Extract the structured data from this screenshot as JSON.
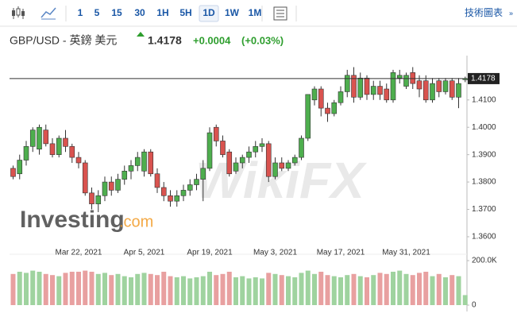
{
  "toolbar": {
    "intervals": [
      "1",
      "5",
      "15",
      "30",
      "1H",
      "5H",
      "1D",
      "1W",
      "1M"
    ],
    "selected": 6,
    "link": "技術圖表"
  },
  "header": {
    "pair": "GBP/USD - 英鎊 美元",
    "price": "1.4178",
    "change": "+0.0004",
    "change_pct": "(+0.03%)"
  },
  "watermarks": {
    "brand": "Investing",
    "brand_suffix": ".com",
    "wikifx": "WikiFX"
  },
  "chart_data": {
    "type": "candlestick",
    "categories": [
      null,
      null,
      null,
      null,
      null,
      null,
      null,
      null,
      null,
      null,
      "Mar 22, 2021",
      null,
      null,
      null,
      null,
      null,
      null,
      null,
      null,
      null,
      "Apr 5, 2021",
      null,
      null,
      null,
      null,
      null,
      null,
      null,
      null,
      null,
      "Apr 19, 2021",
      null,
      null,
      null,
      null,
      null,
      null,
      null,
      null,
      null,
      "May 3, 2021",
      null,
      null,
      null,
      null,
      null,
      null,
      null,
      null,
      null,
      "May 17, 2021",
      null,
      null,
      null,
      null,
      null,
      null,
      null,
      null,
      null,
      "May 31, 2021",
      null,
      null,
      null,
      null,
      null,
      null,
      null,
      null,
      null
    ],
    "open": [
      1.385,
      1.383,
      1.388,
      1.393,
      1.392,
      1.399,
      1.394,
      1.39,
      1.396,
      1.393,
      1.389,
      1.387,
      1.376,
      1.372,
      1.375,
      1.38,
      1.377,
      1.381,
      1.384,
      1.386,
      1.384,
      1.391,
      1.383,
      1.378,
      1.375,
      1.373,
      1.375,
      1.377,
      1.379,
      1.381,
      1.385,
      1.4,
      1.395,
      1.391,
      1.384,
      1.387,
      1.389,
      1.391,
      1.393,
      1.394,
      1.382,
      1.387,
      1.385,
      1.387,
      1.389,
      1.396,
      1.41,
      1.414,
      1.407,
      1.405,
      1.409,
      1.413,
      1.419,
      1.411,
      1.418,
      1.412,
      1.415,
      1.414,
      1.41,
      1.418,
      1.415,
      1.42,
      1.417,
      1.417,
      1.41,
      1.417,
      1.413,
      1.417,
      1.411,
      1.4174
    ],
    "high": [
      1.386,
      1.39,
      1.395,
      1.4,
      1.401,
      1.401,
      1.396,
      1.397,
      1.399,
      1.394,
      1.391,
      1.388,
      1.378,
      1.377,
      1.382,
      1.382,
      1.383,
      1.386,
      1.388,
      1.391,
      1.392,
      1.392,
      1.385,
      1.38,
      1.377,
      1.377,
      1.379,
      1.381,
      1.383,
      1.388,
      1.4,
      1.401,
      1.397,
      1.392,
      1.389,
      1.39,
      1.393,
      1.395,
      1.396,
      1.395,
      1.389,
      1.389,
      1.388,
      1.39,
      1.397,
      1.412,
      1.415,
      1.415,
      1.409,
      1.41,
      1.415,
      1.421,
      1.422,
      1.42,
      1.419,
      1.417,
      1.417,
      1.416,
      1.421,
      1.421,
      1.42,
      1.422,
      1.419,
      1.419,
      1.418,
      1.418,
      1.418,
      1.418,
      1.418,
      1.4185
    ],
    "low": [
      1.381,
      1.381,
      1.386,
      1.391,
      1.39,
      1.393,
      1.389,
      1.389,
      1.391,
      1.387,
      1.385,
      1.375,
      1.37,
      1.369,
      1.373,
      1.375,
      1.376,
      1.379,
      1.381,
      1.384,
      1.382,
      1.382,
      1.376,
      1.373,
      1.371,
      1.371,
      1.373,
      1.375,
      1.377,
      1.373,
      1.384,
      1.393,
      1.389,
      1.382,
      1.383,
      1.385,
      1.387,
      1.389,
      1.391,
      1.38,
      1.381,
      1.384,
      1.384,
      1.386,
      1.388,
      1.395,
      1.408,
      1.404,
      1.402,
      1.404,
      1.408,
      1.411,
      1.409,
      1.41,
      1.41,
      1.41,
      1.41,
      1.409,
      1.409,
      1.416,
      1.414,
      1.414,
      1.411,
      1.409,
      1.409,
      1.411,
      1.412,
      1.41,
      1.407,
      1.4165
    ],
    "close": [
      1.382,
      1.388,
      1.393,
      1.399,
      1.4,
      1.394,
      1.39,
      1.396,
      1.393,
      1.389,
      1.387,
      1.376,
      1.372,
      1.375,
      1.38,
      1.377,
      1.381,
      1.384,
      1.386,
      1.389,
      1.391,
      1.383,
      1.378,
      1.375,
      1.373,
      1.375,
      1.377,
      1.379,
      1.381,
      1.385,
      1.398,
      1.395,
      1.39,
      1.383,
      1.387,
      1.389,
      1.391,
      1.393,
      1.394,
      1.382,
      1.387,
      1.385,
      1.387,
      1.389,
      1.396,
      1.412,
      1.414,
      1.407,
      1.405,
      1.409,
      1.413,
      1.419,
      1.411,
      1.418,
      1.412,
      1.415,
      1.412,
      1.41,
      1.42,
      1.419,
      1.419,
      1.416,
      1.414,
      1.41,
      1.416,
      1.413,
      1.417,
      1.411,
      1.416,
      1.4178
    ],
    "volume": [
      140000,
      150000,
      145000,
      155000,
      150000,
      140000,
      135000,
      130000,
      145000,
      150000,
      150000,
      155000,
      150000,
      140000,
      145000,
      135000,
      140000,
      130000,
      125000,
      140000,
      145000,
      140000,
      135000,
      150000,
      130000,
      125000,
      130000,
      120000,
      125000,
      130000,
      150000,
      135000,
      140000,
      150000,
      125000,
      130000,
      120000,
      125000,
      120000,
      145000,
      140000,
      135000,
      130000,
      125000,
      145000,
      155000,
      140000,
      150000,
      135000,
      130000,
      125000,
      135000,
      140000,
      130000,
      125000,
      135000,
      145000,
      140000,
      150000,
      155000,
      140000,
      135000,
      145000,
      150000,
      130000,
      140000,
      125000,
      135000,
      130000,
      45000
    ],
    "ylim": [
      1.3565,
      1.4262
    ],
    "yticks": [
      {
        "value": 1.36,
        "label": "1.3600"
      },
      {
        "value": 1.37,
        "label": "1.3700"
      },
      {
        "value": 1.38,
        "label": "1.3800"
      },
      {
        "value": 1.39,
        "label": "1.3900"
      },
      {
        "value": 1.4,
        "label": "1.4000"
      },
      {
        "value": 1.41,
        "label": "1.4100"
      }
    ],
    "volume_ylim": [
      0,
      200000
    ],
    "volume_yticks": [
      0,
      {
        "value": 200000,
        "label": "200.0K"
      }
    ],
    "grid": false,
    "up_color": "#4eae4e",
    "down_color": "#d9534f",
    "volume_up_color": "#9fd39f",
    "volume_down_color": "#e8a0a0"
  }
}
